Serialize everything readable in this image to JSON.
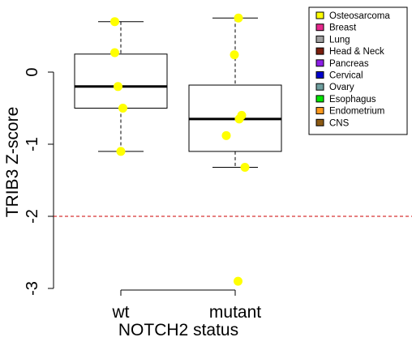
{
  "chart_data": {
    "type": "box",
    "xlabel": "NOTCH2 status",
    "ylabel": "TRIB3 Z-score",
    "ylim": [
      -3.1,
      0.8
    ],
    "yticks": [
      0,
      -1,
      -2,
      -3
    ],
    "ytick_labels": [
      "0",
      "-1",
      "-2",
      "-3"
    ],
    "categories": [
      "wt",
      "mutant"
    ],
    "reference_line": {
      "value": -2,
      "style": "dashed",
      "color": "#cc0000"
    },
    "boxes": [
      {
        "category": "wt",
        "whisker_low": -1.1,
        "q1": -0.5,
        "median": -0.2,
        "q3": 0.25,
        "whisker_high": 0.7
      },
      {
        "category": "mutant",
        "whisker_low": -1.32,
        "q1": -1.1,
        "median": -0.65,
        "q3": -0.18,
        "whisker_high": 0.75
      }
    ],
    "points": [
      {
        "category": "wt",
        "y": 0.7,
        "jitter": -0.15
      },
      {
        "category": "wt",
        "y": 0.27,
        "jitter": -0.15
      },
      {
        "category": "wt",
        "y": -0.2,
        "jitter": -0.07
      },
      {
        "category": "wt",
        "y": -0.5,
        "jitter": 0.05
      },
      {
        "category": "wt",
        "y": -1.1,
        "jitter": 0.0
      },
      {
        "category": "mutant",
        "y": 0.75,
        "jitter": 0.08
      },
      {
        "category": "mutant",
        "y": 0.24,
        "jitter": -0.02
      },
      {
        "category": "mutant",
        "y": -0.6,
        "jitter": 0.16
      },
      {
        "category": "mutant",
        "y": -0.65,
        "jitter": 0.1
      },
      {
        "category": "mutant",
        "y": -0.88,
        "jitter": -0.22
      },
      {
        "category": "mutant",
        "y": -1.32,
        "jitter": 0.24
      },
      {
        "category": "mutant",
        "y": -2.9,
        "jitter": 0.07
      }
    ],
    "point_color": "#ffff00",
    "legend": {
      "position": "top-right",
      "items": [
        {
          "label": "Osteosarcoma",
          "color": "#ffff00"
        },
        {
          "label": "Breast",
          "color": "#e6288c"
        },
        {
          "label": "Lung",
          "color": "#a0a0a0"
        },
        {
          "label": "Head & Neck",
          "color": "#7a1e0e"
        },
        {
          "label": "Pancreas",
          "color": "#8c1ee6"
        },
        {
          "label": "Cervical",
          "color": "#0000cc"
        },
        {
          "label": "Ovary",
          "color": "#6f9f9f"
        },
        {
          "label": "Esophagus",
          "color": "#00e600"
        },
        {
          "label": "Endometrium",
          "color": "#ff9a1e"
        },
        {
          "label": "CNS",
          "color": "#8c5a14"
        }
      ]
    }
  }
}
